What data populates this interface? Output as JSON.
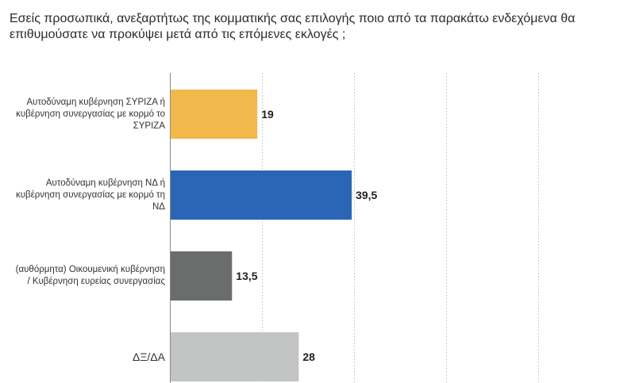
{
  "question": "Εσείς προσωπικά, ανεξαρτήτως της κομματικής σας επιλογής ποιο από τα παρακάτω ενδεχόμενα θα επιθυμούσατε να προκύψει μετά από τις επόμενες εκλογές ;",
  "chart_data": {
    "type": "bar",
    "orientation": "horizontal",
    "categories": [
      "Αυτοδύναμη κυβέρνηση ΣΥΡΙΖΑ ή κυβέρνηση συνεργασίας με κορμό το ΣΥΡΙΖΑ",
      "Αυτοδύναμη κυβέρνηση ΝΔ ή κυβέρνηση συνεργασίας με κορμό τη ΝΔ",
      "(αυθόρμητα) Οικουμενική κυβέρνηση / Κυβέρνηση ευρείας συνεργασίας",
      "ΔΞ/ΔΑ"
    ],
    "values": [
      19,
      39.5,
      13.5,
      28
    ],
    "value_labels": [
      "19",
      "39,5",
      "13,5",
      "28"
    ],
    "colors": [
      "#F2B84B",
      "#2A66B5",
      "#6A6D6C",
      "#C3C5C4"
    ],
    "xlim": [
      0,
      100
    ],
    "grid": true,
    "title": "",
    "xlabel": "",
    "ylabel": ""
  }
}
